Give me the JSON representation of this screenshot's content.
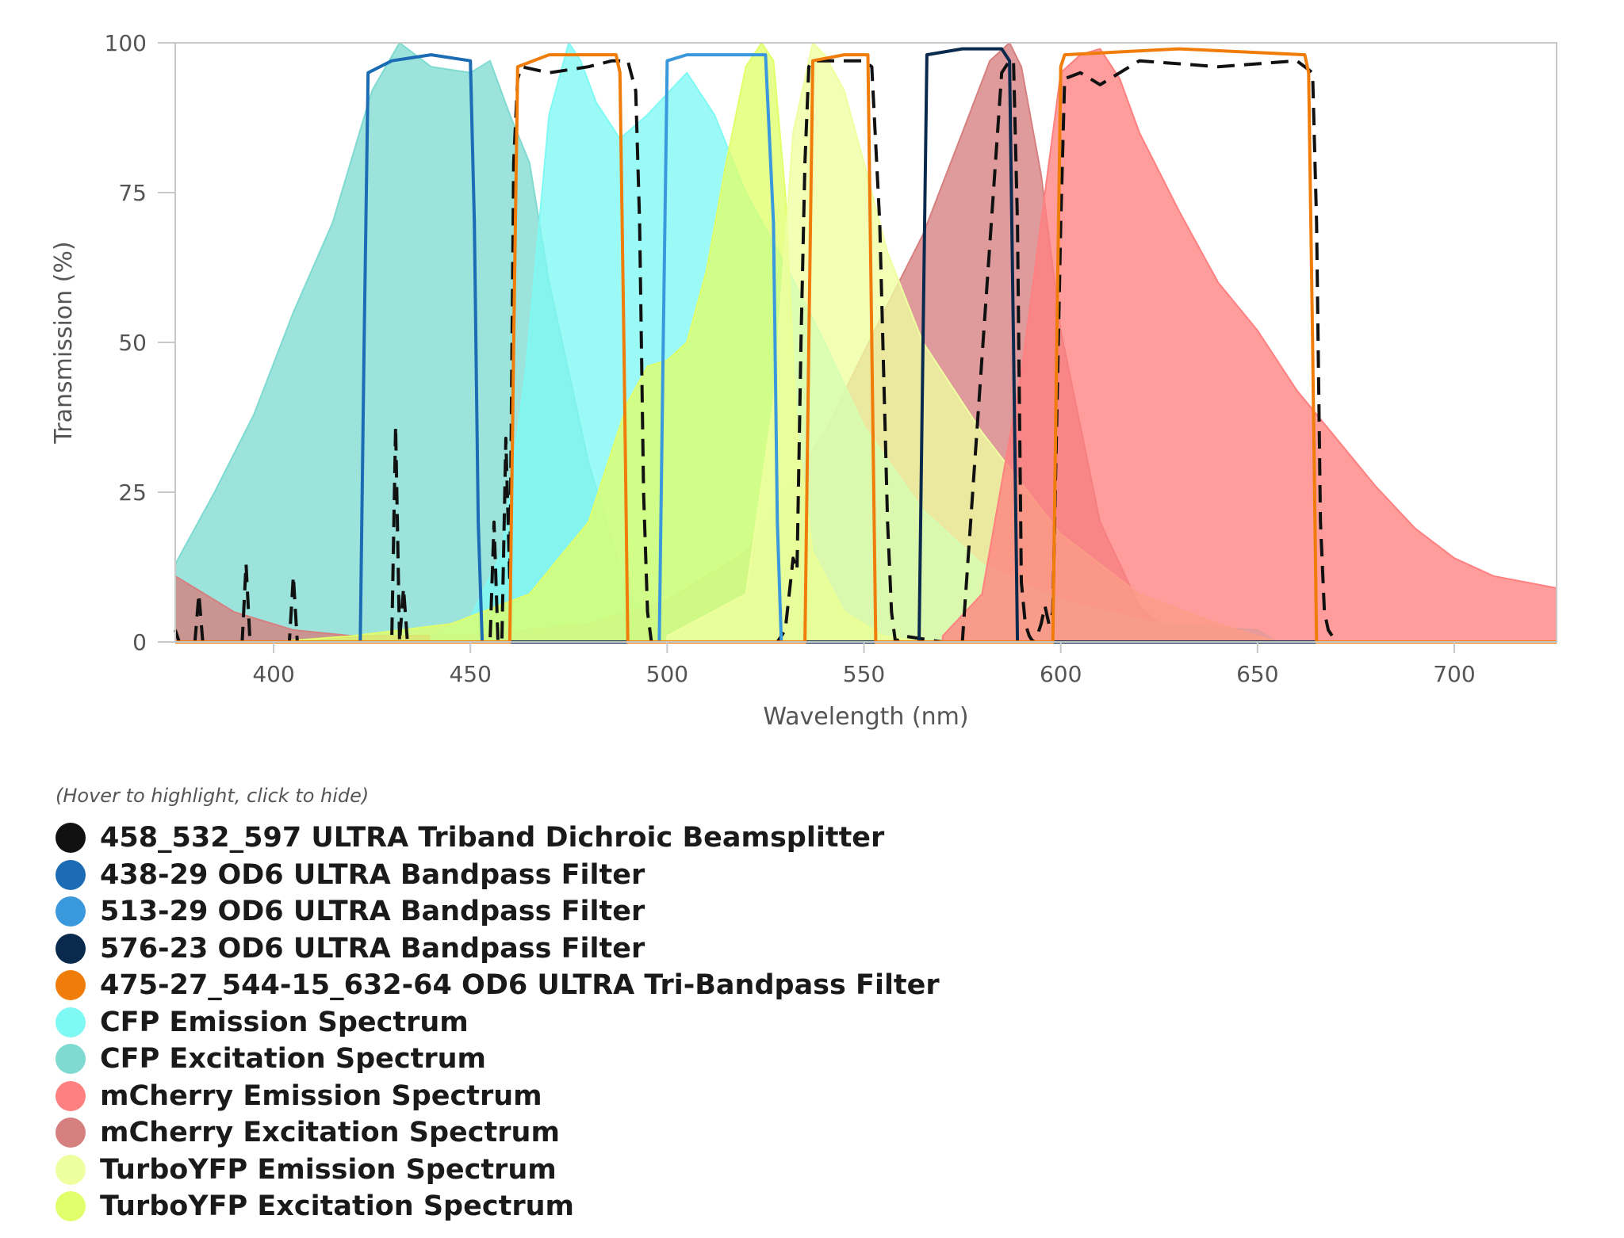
{
  "legend_hint": "(Hover to highlight, click to hide)",
  "chart_data": {
    "type": "area",
    "xlabel": "Wavelength (nm)",
    "ylabel": "Transmission (%)",
    "xlim": [
      375,
      726
    ],
    "ylim": [
      0,
      100
    ],
    "xticks": [
      400,
      450,
      500,
      550,
      600,
      650,
      700
    ],
    "yticks": [
      0,
      25,
      50,
      75,
      100
    ],
    "grid": false,
    "legend_position": "bottom-left",
    "series": [
      {
        "name": "458_532_597 ULTRA Triband Dichroic Beamsplitter",
        "color": "#111111",
        "kind": "dashed-line",
        "x": [
          375,
          376,
          380,
          381,
          382,
          383,
          384,
          392,
          393,
          394,
          404,
          405,
          406,
          430,
          431,
          432,
          433,
          434,
          435,
          440,
          450,
          455,
          456,
          457,
          458,
          459,
          460,
          461,
          462,
          463,
          470,
          480,
          486,
          488,
          490,
          492,
          493,
          494,
          495,
          496,
          520,
          528,
          530,
          532,
          533,
          534,
          535,
          536,
          537,
          545,
          550,
          552,
          554,
          556,
          557,
          558,
          560,
          570,
          575,
          585,
          587,
          588,
          589,
          590,
          591,
          592,
          593,
          594,
          595,
          596,
          597,
          598,
          600,
          601,
          605,
          610,
          620,
          640,
          660,
          664,
          665,
          666,
          667,
          668,
          670,
          680,
          726
        ],
        "y": [
          2,
          0,
          0,
          8,
          0,
          0,
          0,
          0,
          13,
          0,
          0,
          11,
          0,
          0,
          36,
          0,
          9,
          0,
          0,
          0,
          0,
          0,
          20,
          0,
          0,
          34,
          10,
          80,
          94,
          96,
          95,
          96,
          97,
          97,
          97,
          92,
          70,
          25,
          5,
          0,
          0,
          0,
          2,
          14,
          12,
          50,
          80,
          96,
          97,
          97,
          97,
          96,
          70,
          20,
          5,
          0,
          1,
          0,
          0,
          95,
          97,
          97,
          70,
          10,
          3,
          1,
          0,
          1,
          3,
          6,
          3,
          5,
          70,
          94,
          95,
          93,
          97,
          96,
          97,
          95,
          70,
          20,
          5,
          2,
          0,
          0,
          0
        ]
      },
      {
        "name": "438-29 OD6 ULTRA Bandpass Filter",
        "color": "#1b6bb5",
        "kind": "line",
        "x": [
          375,
          422,
          423,
          424,
          430,
          440,
          450,
          451,
          452,
          453,
          726
        ],
        "y": [
          0,
          0,
          50,
          95,
          97,
          98,
          97,
          70,
          20,
          0,
          0
        ]
      },
      {
        "name": "513-29 OD6 ULTRA Bandpass Filter",
        "color": "#3a99dd",
        "kind": "line",
        "x": [
          375,
          498,
          499,
          500,
          505,
          515,
          525,
          527,
          528,
          529,
          726
        ],
        "y": [
          0,
          0,
          50,
          97,
          98,
          98,
          98,
          70,
          20,
          0,
          0
        ]
      },
      {
        "name": "576-23 OD6 ULTRA Bandpass Filter",
        "color": "#0a2a4d",
        "kind": "line",
        "x": [
          375,
          564,
          565,
          566,
          575,
          585,
          587,
          588,
          589,
          726
        ],
        "y": [
          0,
          0,
          50,
          98,
          99,
          99,
          97,
          50,
          0,
          0
        ]
      },
      {
        "name": "475-27_544-15_632-64 OD6 ULTRA Tri-Bandpass Filter",
        "color": "#f07c0a",
        "kind": "line",
        "x": [
          375,
          460,
          461,
          462,
          470,
          487,
          488,
          489,
          490,
          535,
          536,
          537,
          545,
          551,
          552,
          553,
          598,
          599,
          600,
          601,
          630,
          662,
          663,
          664,
          665,
          726
        ],
        "y": [
          0,
          0,
          50,
          96,
          98,
          98,
          95,
          50,
          0,
          0,
          50,
          97,
          98,
          98,
          50,
          0,
          0,
          50,
          96,
          98,
          99,
          98,
          95,
          50,
          0,
          0
        ]
      },
      {
        "name": "CFP Emission Spectrum",
        "color": "#7ff9f3",
        "kind": "area",
        "x": [
          440,
          450,
          458,
          464,
          470,
          475,
          478,
          482,
          488,
          495,
          505,
          512,
          520,
          530,
          540,
          550,
          565,
          580,
          600,
          625,
          650,
          655
        ],
        "y": [
          1,
          4,
          15,
          45,
          88,
          100,
          97,
          90,
          84,
          88,
          95,
          88,
          75,
          63,
          50,
          36,
          22,
          13,
          7,
          3,
          2,
          0
        ]
      },
      {
        "name": "CFP Excitation Spectrum",
        "color": "#7fdbd1",
        "kind": "area",
        "x": [
          375,
          385,
          395,
          405,
          415,
          425,
          432,
          440,
          450,
          455,
          460,
          465,
          470,
          480,
          490,
          500,
          510
        ],
        "y": [
          13,
          25,
          38,
          55,
          70,
          92,
          100,
          96,
          95,
          97,
          88,
          80,
          60,
          30,
          8,
          2,
          0
        ]
      },
      {
        "name": "mCherry Emission Spectrum",
        "color": "#ff8080",
        "kind": "area",
        "x": [
          570,
          580,
          590,
          600,
          605,
          610,
          615,
          620,
          630,
          640,
          650,
          660,
          670,
          680,
          690,
          700,
          710,
          726
        ],
        "y": [
          1,
          8,
          45,
          95,
          98,
          99,
          94,
          85,
          72,
          60,
          52,
          42,
          34,
          26,
          19,
          14,
          11,
          9
        ]
      },
      {
        "name": "mCherry Excitation Spectrum",
        "color": "#d67f7f",
        "kind": "area",
        "x": [
          375,
          390,
          405,
          420,
          450,
          480,
          500,
          520,
          540,
          555,
          565,
          575,
          582,
          587,
          590,
          595,
          600,
          610,
          620,
          630
        ],
        "y": [
          11,
          5,
          2,
          1,
          1,
          3,
          7,
          15,
          35,
          55,
          68,
          85,
          97,
          100,
          96,
          78,
          52,
          20,
          6,
          0
        ]
      },
      {
        "name": "TurboYFP Emission Spectrum",
        "color": "#eeffa0",
        "kind": "area",
        "x": [
          500,
          520,
          527,
          532,
          537,
          540,
          545,
          550,
          556,
          565,
          580,
          600,
          620,
          640,
          655
        ],
        "y": [
          1,
          8,
          40,
          85,
          100,
          98,
          92,
          80,
          65,
          50,
          35,
          18,
          8,
          3,
          0
        ]
      },
      {
        "name": "TurboYFP Excitation Spectrum",
        "color": "#e0ff6a",
        "kind": "area",
        "x": [
          375,
          400,
          420,
          445,
          465,
          480,
          485,
          490,
          495,
          500,
          505,
          510,
          515,
          520,
          524,
          527,
          530,
          533,
          537,
          545,
          555,
          565
        ],
        "y": [
          0,
          0,
          1,
          3,
          8,
          20,
          30,
          40,
          46,
          47,
          50,
          62,
          80,
          96,
          100,
          97,
          75,
          35,
          15,
          5,
          1,
          0
        ]
      }
    ]
  }
}
